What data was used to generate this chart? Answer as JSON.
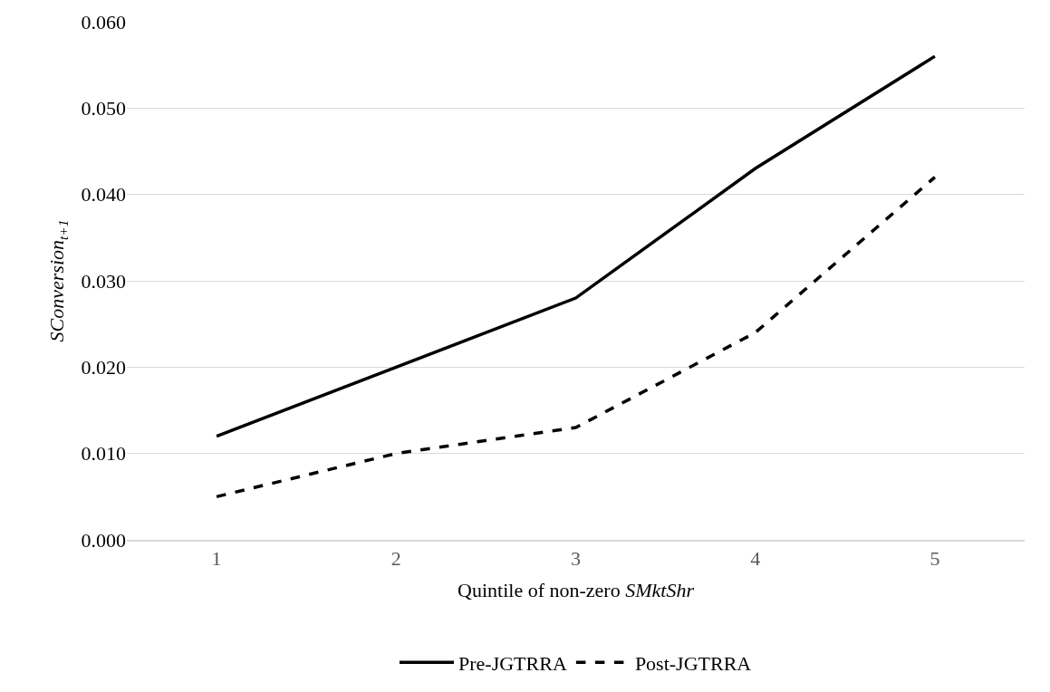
{
  "chart_data": {
    "type": "line",
    "categories": [
      "1",
      "2",
      "3",
      "4",
      "5"
    ],
    "series": [
      {
        "name": "Pre-JGTRRA",
        "color": "#000000",
        "line_style": "solid",
        "values": [
          0.012,
          0.02,
          0.028,
          0.043,
          0.056
        ]
      },
      {
        "name": "Post-JGTRRA",
        "color": "#000000",
        "line_style": "dashed",
        "values": [
          0.005,
          0.01,
          0.013,
          0.024,
          0.042
        ]
      }
    ],
    "xlabel": "Quintile of non-zero SMktShr",
    "ylabel": "SConversion$_{t+1}$",
    "ylim": [
      0,
      0.06
    ],
    "yticks": [
      {
        "value": 0,
        "label": "0.000"
      },
      {
        "value": 0.01,
        "label": "0.010"
      },
      {
        "value": 0.02,
        "label": "0.020"
      },
      {
        "value": 0.03,
        "label": "0.030"
      },
      {
        "value": 0.04,
        "label": "0.040"
      },
      {
        "value": 0.05,
        "label": "0.050"
      },
      {
        "value": 0.06,
        "label": "0.060"
      }
    ],
    "grid": "y",
    "legend": "bottom",
    "marker": "none"
  }
}
